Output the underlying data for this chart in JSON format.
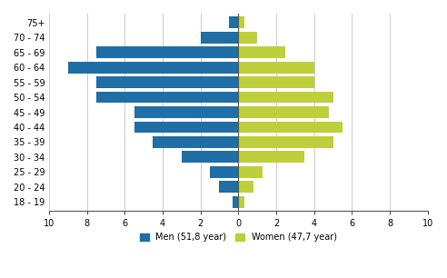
{
  "age_groups": [
    "18 - 19",
    "20 - 24",
    "25 - 29",
    "30 - 34",
    "35 - 39",
    "40 - 44",
    "45 - 49",
    "50 - 54",
    "55 - 59",
    "60 - 64",
    "65 - 69",
    "70 - 74",
    "75+"
  ],
  "men_values": [
    0.3,
    1.0,
    1.5,
    3.0,
    4.5,
    5.5,
    5.5,
    7.5,
    7.5,
    9.0,
    7.5,
    2.0,
    0.5
  ],
  "women_values": [
    0.3,
    0.8,
    1.3,
    3.5,
    5.0,
    5.5,
    4.8,
    5.0,
    4.0,
    4.0,
    2.5,
    1.0,
    0.3
  ],
  "men_color": "#1F6EA6",
  "women_color": "#BFCE3B",
  "men_label": "Men (51,8 year)",
  "women_label": "Women (47,7 year)",
  "xlim": [
    -10,
    10
  ],
  "xticks": [
    -10,
    -8,
    -6,
    -4,
    -2,
    0,
    2,
    4,
    6,
    8,
    10
  ],
  "xticklabels": [
    "10",
    "8",
    "6",
    "4",
    "2",
    "0",
    "2",
    "4",
    "6",
    "8",
    "10"
  ],
  "bg_color": "#FFFFFF",
  "grid_color": "#CCCCCC"
}
